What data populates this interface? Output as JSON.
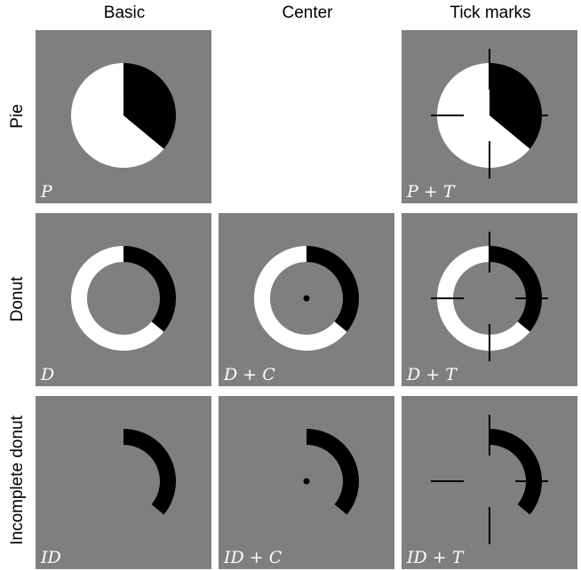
{
  "columns": [
    "Basic",
    "Center",
    "Tick marks"
  ],
  "rows": [
    "Pie",
    "Donut",
    "Incomplete donut"
  ],
  "cells": [
    {
      "id": "pie-basic",
      "label": "P",
      "shape": "pie",
      "center": false,
      "ticks": false,
      "arc_fraction": 0.36,
      "show_white": true
    },
    {
      "id": "pie-center",
      "label": "",
      "shape": "none",
      "center": false,
      "ticks": false,
      "arc_fraction": 0.36,
      "show_white": true
    },
    {
      "id": "pie-tick",
      "label": "P + T",
      "shape": "pie",
      "center": false,
      "ticks": true,
      "arc_fraction": 0.36,
      "show_white": true
    },
    {
      "id": "donut-basic",
      "label": "D",
      "shape": "donut",
      "center": false,
      "ticks": false,
      "arc_fraction": 0.36,
      "show_white": true
    },
    {
      "id": "donut-center",
      "label": "D + C",
      "shape": "donut",
      "center": true,
      "ticks": false,
      "arc_fraction": 0.36,
      "show_white": true
    },
    {
      "id": "donut-tick",
      "label": "D + T",
      "shape": "donut",
      "center": false,
      "ticks": true,
      "arc_fraction": 0.36,
      "show_white": true
    },
    {
      "id": "idonut-basic",
      "label": "ID",
      "shape": "donut",
      "center": false,
      "ticks": false,
      "arc_fraction": 0.36,
      "show_white": false
    },
    {
      "id": "idonut-center",
      "label": "ID + C",
      "shape": "donut",
      "center": true,
      "ticks": false,
      "arc_fraction": 0.36,
      "show_white": false
    },
    {
      "id": "idonut-tick",
      "label": "ID + T",
      "shape": "donut",
      "center": false,
      "ticks": true,
      "arc_fraction": 0.36,
      "show_white": false
    }
  ],
  "colors": {
    "panel_bg": "#7f7f7f",
    "slice_dark": "#000000",
    "slice_light": "#ffffff"
  }
}
